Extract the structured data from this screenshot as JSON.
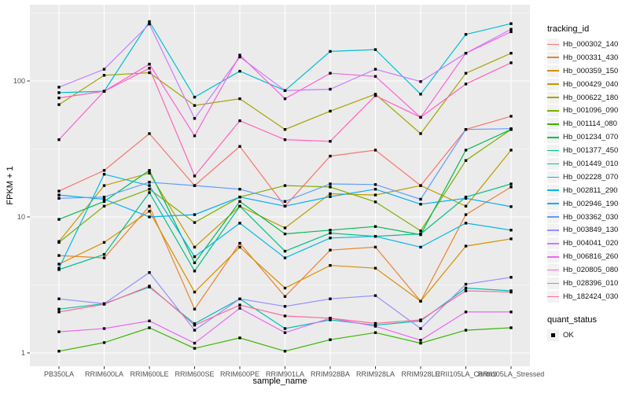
{
  "chart_data": {
    "type": "line",
    "xlabel": "sample_name",
    "ylabel": "FPKM + 1",
    "y_scale": "log10",
    "y_ticks": [
      1,
      10,
      100
    ],
    "y_tick_labels": [
      "1",
      "10",
      "100"
    ],
    "ylim": [
      0.8,
      364
    ],
    "grid": "on",
    "panel_bg": "#EBEBEB",
    "grid_color": "#FFFFFF",
    "tick_label_color": "#4D4D4D",
    "marker_shape": "filled-square",
    "marker_color": "#000000",
    "legend_position": "right",
    "legend_title": "tracking_id",
    "legend_key_bg": "#F2F2F2",
    "legend2_title": "quant_status",
    "legend2_items": [
      "OK"
    ],
    "categories": [
      "PB350LA",
      "RRIM600LA",
      "RRIM600LE",
      "RRIM600SE",
      "RRIM600PE",
      "RRIM901LA",
      "RRIM928BA",
      "RRIM928LA",
      "RRIM928LE",
      "RRII105LA_Control",
      "RRII105LA_Stressed"
    ],
    "series": [
      {
        "name": "Hb_000302_140",
        "color": "#F8766D",
        "values": [
          15.5,
          22,
          41,
          17,
          33,
          12,
          28,
          31,
          17,
          44,
          55
        ]
      },
      {
        "name": "Hb_000331_430",
        "color": "#EA8331",
        "values": [
          5.2,
          5.0,
          12,
          2.1,
          6.4,
          2.6,
          5.7,
          6.0,
          2.4,
          10.4,
          16.6
        ]
      },
      {
        "name": "Hb_000359_150",
        "color": "#D89000",
        "values": [
          4.5,
          6.5,
          11,
          2.8,
          6.0,
          3.0,
          4.4,
          4.2,
          2.4,
          6.1,
          6.9
        ]
      },
      {
        "name": "Hb_000429_040",
        "color": "#C09B00",
        "values": [
          6.6,
          17,
          21,
          6.0,
          12,
          8.3,
          14.8,
          14.5,
          17,
          12,
          31
        ]
      },
      {
        "name": "Hb_000622_180",
        "color": "#A3A500",
        "values": [
          67,
          110,
          115,
          66,
          74,
          44,
          60,
          80,
          41,
          114,
          160
        ]
      },
      {
        "name": "Hb_001096_090",
        "color": "#7CAE00",
        "values": [
          6.5,
          12,
          16,
          9.1,
          14,
          17,
          16.6,
          12.9,
          7.9,
          26,
          44
        ]
      },
      {
        "name": "Hb_001114_080",
        "color": "#39B600",
        "values": [
          1.03,
          1.19,
          1.53,
          1.08,
          1.29,
          1.03,
          1.25,
          1.41,
          1.18,
          1.47,
          1.53
        ]
      },
      {
        "name": "Hb_001234_070",
        "color": "#00BB4E",
        "values": [
          9.6,
          13,
          22,
          4.6,
          13,
          7.5,
          8.0,
          8.5,
          7.4,
          31,
          44
        ]
      },
      {
        "name": "Hb_001377_450",
        "color": "#00C087",
        "values": [
          4.1,
          5.3,
          15.1,
          4.0,
          12,
          5.6,
          7.6,
          7.2,
          7.5,
          14,
          17.5
        ]
      },
      {
        "name": "Hb_001449_010",
        "color": "#00C0B2",
        "values": [
          2.1,
          2.3,
          3.05,
          1.64,
          2.5,
          1.51,
          1.75,
          1.6,
          1.72,
          3.0,
          2.86
        ]
      },
      {
        "name": "Hb_002228_070",
        "color": "#00BFD3",
        "values": [
          82,
          84,
          273,
          76,
          118,
          85,
          165,
          170,
          80,
          220,
          264
        ]
      },
      {
        "name": "Hb_002811_290",
        "color": "#00B8E7",
        "values": [
          4.2,
          20.6,
          17,
          5.1,
          9.0,
          5.0,
          7.0,
          7.2,
          6.0,
          9.0,
          8.0
        ]
      },
      {
        "name": "Hb_002946_190",
        "color": "#00ACFC",
        "values": [
          14.5,
          13.5,
          10,
          10.4,
          14,
          12,
          14.1,
          16,
          12.4,
          13.7,
          11.9
        ]
      },
      {
        "name": "Hb_003362_030",
        "color": "#619CFF",
        "values": [
          13.7,
          14,
          18,
          17,
          16,
          13,
          17.5,
          17.3,
          13.5,
          44,
          44.6
        ]
      },
      {
        "name": "Hb_003849_130",
        "color": "#9590FF",
        "values": [
          2.5,
          2.3,
          3.9,
          1.47,
          2.5,
          2.2,
          2.5,
          2.64,
          1.51,
          3.2,
          3.6
        ]
      },
      {
        "name": "Hb_004041_020",
        "color": "#C77CFF",
        "values": [
          90,
          122,
          262,
          53,
          150,
          85,
          87,
          122,
          99,
          160,
          240
        ]
      },
      {
        "name": "Hb_006816_260",
        "color": "#E76BF3",
        "values": [
          1.43,
          1.51,
          1.72,
          1.18,
          2.13,
          1.41,
          1.8,
          1.57,
          1.24,
          2.0,
          2.0
        ]
      },
      {
        "name": "Hb_020805_080",
        "color": "#FA62DB",
        "values": [
          37,
          84,
          133,
          39.5,
          155,
          74,
          114,
          108,
          54,
          160,
          230
        ]
      },
      {
        "name": "Hb_028396_010",
        "color": "#FF62BC",
        "values": [
          75,
          84,
          124,
          20,
          51,
          37,
          36,
          78,
          54,
          95,
          136
        ]
      },
      {
        "name": "Hb_182424_030",
        "color": "#FF6A98",
        "values": [
          2.0,
          2.28,
          3.1,
          1.6,
          2.25,
          1.87,
          1.8,
          1.65,
          1.75,
          2.86,
          2.8
        ]
      }
    ]
  }
}
